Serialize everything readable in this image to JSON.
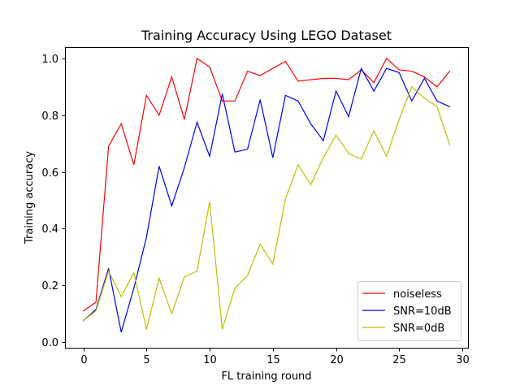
{
  "chart_data": {
    "type": "line",
    "title": "Training Accuracy Using LEGO Dataset",
    "xlabel": "FL training round",
    "ylabel": "Training accuracy",
    "xlim": [
      -1.45,
      30.45
    ],
    "ylim": [
      -0.02,
      1.04
    ],
    "xticks": [
      0,
      5,
      10,
      15,
      20,
      25,
      30
    ],
    "yticks": [
      0.0,
      0.2,
      0.4,
      0.6,
      0.8,
      1.0
    ],
    "ytick_labels": [
      "0.0",
      "0.2",
      "0.4",
      "0.6",
      "0.8",
      "1.0"
    ],
    "grid": false,
    "legend_position": "lower-right",
    "x": [
      0,
      1,
      2,
      3,
      4,
      5,
      6,
      7,
      8,
      9,
      10,
      11,
      12,
      13,
      14,
      15,
      16,
      17,
      18,
      19,
      20,
      21,
      22,
      23,
      24,
      25,
      26,
      27,
      28,
      29
    ],
    "series": [
      {
        "name": "noiseless",
        "color": "#ff0000",
        "values": [
          0.11,
          0.14,
          0.69,
          0.77,
          0.625,
          0.87,
          0.8,
          0.935,
          0.785,
          1.0,
          0.97,
          0.85,
          0.85,
          0.955,
          0.94,
          0.965,
          0.99,
          0.92,
          0.925,
          0.93,
          0.93,
          0.925,
          0.96,
          0.915,
          1.0,
          0.96,
          0.955,
          0.935,
          0.9,
          0.955
        ]
      },
      {
        "name": "SNR=10dB",
        "color": "#0000ff",
        "values": [
          0.075,
          0.115,
          0.26,
          0.035,
          0.19,
          0.37,
          0.62,
          0.48,
          0.615,
          0.775,
          0.655,
          0.875,
          0.67,
          0.68,
          0.855,
          0.65,
          0.87,
          0.85,
          0.77,
          0.71,
          0.885,
          0.795,
          0.965,
          0.885,
          0.965,
          0.95,
          0.85,
          0.93,
          0.85,
          0.83
        ]
      },
      {
        "name": "SNR=0dB",
        "color": "#bfbf00",
        "values": [
          0.075,
          0.11,
          0.25,
          0.16,
          0.245,
          0.045,
          0.225,
          0.1,
          0.23,
          0.25,
          0.495,
          0.045,
          0.19,
          0.235,
          0.345,
          0.275,
          0.505,
          0.625,
          0.555,
          0.65,
          0.73,
          0.665,
          0.645,
          0.745,
          0.655,
          0.785,
          0.9,
          0.86,
          0.83,
          0.695
        ]
      }
    ]
  }
}
